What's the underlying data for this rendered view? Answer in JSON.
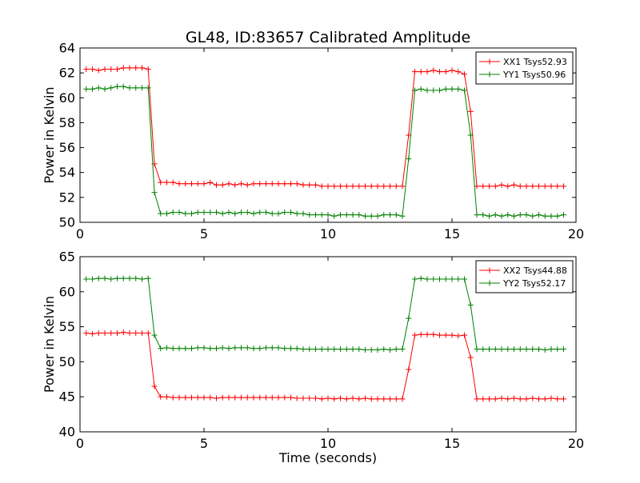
{
  "title": "GL48, ID:83657 Calibrated Amplitude",
  "chart_data": [
    {
      "type": "line",
      "title": "GL48, ID:83657 Calibrated Amplitude",
      "xlabel": "",
      "ylabel": "Power in Kelvin",
      "xlim": [
        0,
        20
      ],
      "ylim": [
        50,
        64
      ],
      "xticks": [
        0,
        5,
        10,
        15,
        20
      ],
      "yticks": [
        50,
        52,
        54,
        56,
        58,
        60,
        62,
        64
      ],
      "legend_position": "top-right",
      "grid": false,
      "x": [
        0.25,
        0.5,
        0.75,
        1.0,
        1.25,
        1.5,
        1.75,
        2.0,
        2.25,
        2.5,
        2.75,
        3.0,
        3.25,
        3.5,
        3.75,
        4.0,
        4.25,
        4.5,
        4.75,
        5.0,
        5.25,
        5.5,
        5.75,
        6.0,
        6.25,
        6.5,
        6.75,
        7.0,
        7.25,
        7.5,
        7.75,
        8.0,
        8.25,
        8.5,
        8.75,
        9.0,
        9.25,
        9.5,
        9.75,
        10.0,
        10.25,
        10.5,
        10.75,
        11.0,
        11.25,
        11.5,
        11.75,
        12.0,
        12.25,
        12.5,
        12.75,
        13.0,
        13.25,
        13.5,
        13.75,
        14.0,
        14.25,
        14.5,
        14.75,
        15.0,
        15.25,
        15.5,
        15.75,
        16.0,
        16.25,
        16.5,
        16.75,
        17.0,
        17.25,
        17.5,
        17.75,
        18.0,
        18.25,
        18.5,
        18.75,
        19.0,
        19.25,
        19.5
      ],
      "series": [
        {
          "name": "XX1 Tsys52.93",
          "color": "#ff0000",
          "values": [
            62.3,
            62.3,
            62.2,
            62.3,
            62.3,
            62.3,
            62.4,
            62.4,
            62.4,
            62.4,
            62.3,
            54.7,
            53.2,
            53.2,
            53.2,
            53.1,
            53.1,
            53.1,
            53.1,
            53.1,
            53.2,
            53.0,
            53.0,
            53.1,
            53.0,
            53.1,
            53.0,
            53.1,
            53.1,
            53.1,
            53.1,
            53.1,
            53.1,
            53.1,
            53.1,
            53.0,
            53.0,
            53.0,
            52.9,
            52.9,
            52.9,
            52.9,
            52.9,
            52.9,
            52.9,
            52.9,
            52.9,
            52.9,
            52.9,
            52.9,
            52.9,
            52.9,
            57.0,
            62.1,
            62.1,
            62.1,
            62.2,
            62.1,
            62.1,
            62.2,
            62.1,
            61.9,
            58.9,
            52.9,
            52.9,
            52.9,
            52.9,
            53.0,
            52.9,
            53.0,
            52.9,
            52.9,
            52.9,
            52.9,
            52.9,
            52.9,
            52.9,
            52.9
          ]
        },
        {
          "name": "YY1 Tsys50.96",
          "color": "#008000",
          "values": [
            60.7,
            60.7,
            60.8,
            60.7,
            60.8,
            60.9,
            60.9,
            60.8,
            60.8,
            60.8,
            60.8,
            52.4,
            50.7,
            50.7,
            50.8,
            50.8,
            50.7,
            50.7,
            50.8,
            50.8,
            50.8,
            50.8,
            50.7,
            50.8,
            50.7,
            50.8,
            50.8,
            50.7,
            50.8,
            50.8,
            50.7,
            50.7,
            50.8,
            50.8,
            50.7,
            50.7,
            50.6,
            50.6,
            50.6,
            50.6,
            50.5,
            50.6,
            50.6,
            50.6,
            50.6,
            50.5,
            50.5,
            50.5,
            50.6,
            50.6,
            50.6,
            50.5,
            55.1,
            60.6,
            60.7,
            60.6,
            60.6,
            60.6,
            60.7,
            60.7,
            60.7,
            60.6,
            57.0,
            50.6,
            50.6,
            50.5,
            50.6,
            50.5,
            50.6,
            50.5,
            50.6,
            50.6,
            50.5,
            50.6,
            50.5,
            50.5,
            50.5,
            50.6
          ]
        }
      ]
    },
    {
      "type": "line",
      "title": "",
      "xlabel": "Time (seconds)",
      "ylabel": "Power in Kelvin",
      "xlim": [
        0,
        20
      ],
      "ylim": [
        40,
        65
      ],
      "xticks": [
        0,
        5,
        10,
        15,
        20
      ],
      "yticks": [
        40,
        45,
        50,
        55,
        60,
        65
      ],
      "legend_position": "top-right",
      "grid": false,
      "x": [
        0.25,
        0.5,
        0.75,
        1.0,
        1.25,
        1.5,
        1.75,
        2.0,
        2.25,
        2.5,
        2.75,
        3.0,
        3.25,
        3.5,
        3.75,
        4.0,
        4.25,
        4.5,
        4.75,
        5.0,
        5.25,
        5.5,
        5.75,
        6.0,
        6.25,
        6.5,
        6.75,
        7.0,
        7.25,
        7.5,
        7.75,
        8.0,
        8.25,
        8.5,
        8.75,
        9.0,
        9.25,
        9.5,
        9.75,
        10.0,
        10.25,
        10.5,
        10.75,
        11.0,
        11.25,
        11.5,
        11.75,
        12.0,
        12.25,
        12.5,
        12.75,
        13.0,
        13.25,
        13.5,
        13.75,
        14.0,
        14.25,
        14.5,
        14.75,
        15.0,
        15.25,
        15.5,
        15.75,
        16.0,
        16.25,
        16.5,
        16.75,
        17.0,
        17.25,
        17.5,
        17.75,
        18.0,
        18.25,
        18.5,
        18.75,
        19.0,
        19.25,
        19.5
      ],
      "series": [
        {
          "name": "XX2 Tsys44.88",
          "color": "#ff0000",
          "values": [
            54.1,
            54.0,
            54.1,
            54.1,
            54.1,
            54.1,
            54.2,
            54.1,
            54.1,
            54.1,
            54.1,
            46.5,
            45.0,
            45.0,
            44.9,
            44.9,
            44.9,
            44.9,
            44.9,
            44.9,
            44.9,
            44.8,
            44.9,
            44.9,
            44.9,
            44.9,
            44.9,
            44.9,
            44.9,
            44.9,
            44.9,
            44.9,
            44.9,
            44.9,
            44.8,
            44.8,
            44.8,
            44.8,
            44.7,
            44.8,
            44.7,
            44.8,
            44.7,
            44.8,
            44.7,
            44.8,
            44.7,
            44.7,
            44.7,
            44.7,
            44.7,
            44.7,
            48.9,
            53.8,
            53.9,
            53.9,
            53.9,
            53.8,
            53.8,
            53.8,
            53.7,
            53.8,
            50.6,
            44.7,
            44.7,
            44.7,
            44.7,
            44.8,
            44.7,
            44.8,
            44.7,
            44.7,
            44.8,
            44.7,
            44.7,
            44.8,
            44.7,
            44.7
          ]
        },
        {
          "name": "YY2 Tsys52.17",
          "color": "#008000",
          "values": [
            61.8,
            61.8,
            61.9,
            61.9,
            61.8,
            61.9,
            61.9,
            61.9,
            61.9,
            61.8,
            61.9,
            53.8,
            51.9,
            52.0,
            51.9,
            51.9,
            51.9,
            51.9,
            52.0,
            52.0,
            51.9,
            51.9,
            52.0,
            51.9,
            52.0,
            52.0,
            52.0,
            51.9,
            51.9,
            52.0,
            52.0,
            52.0,
            51.9,
            51.9,
            51.9,
            51.8,
            51.8,
            51.8,
            51.8,
            51.8,
            51.8,
            51.8,
            51.8,
            51.8,
            51.8,
            51.7,
            51.7,
            51.7,
            51.8,
            51.7,
            51.8,
            51.8,
            56.2,
            61.8,
            61.9,
            61.8,
            61.8,
            61.8,
            61.8,
            61.8,
            61.8,
            61.8,
            58.1,
            51.8,
            51.8,
            51.8,
            51.8,
            51.8,
            51.8,
            51.8,
            51.8,
            51.8,
            51.8,
            51.8,
            51.7,
            51.8,
            51.8,
            51.8
          ]
        }
      ]
    }
  ]
}
